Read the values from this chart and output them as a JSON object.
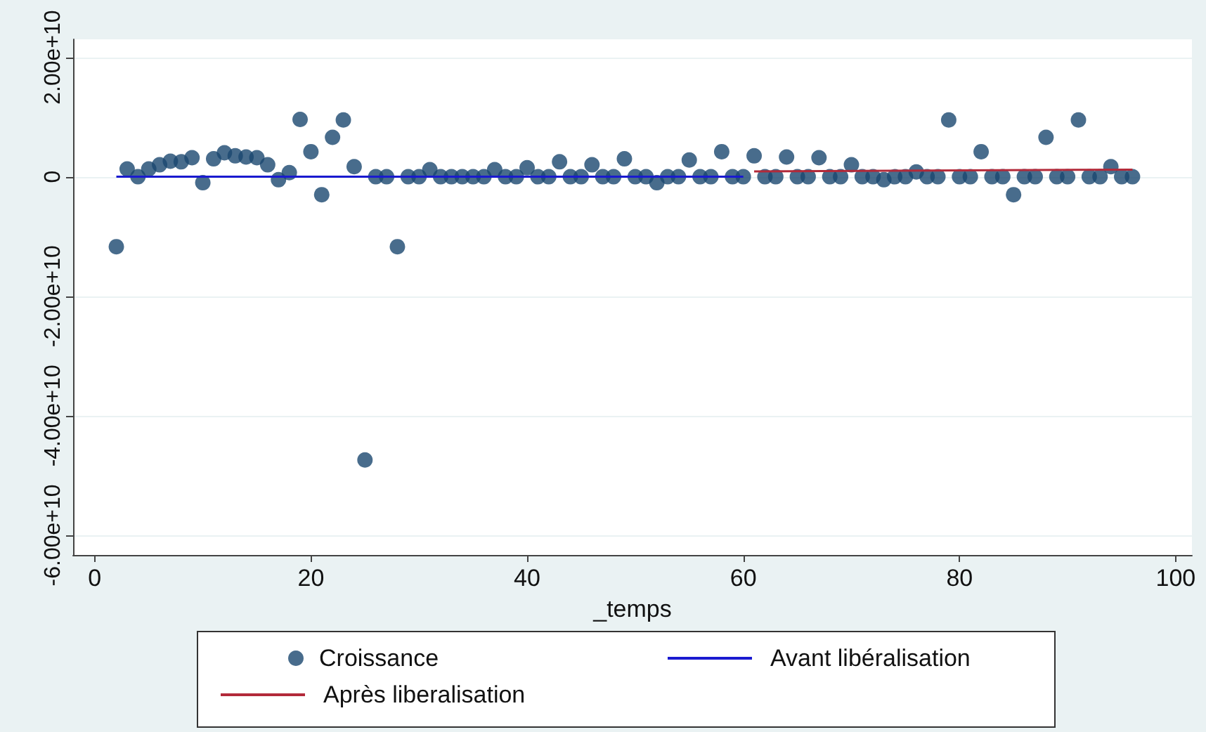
{
  "chart_data": {
    "type": "scatter",
    "xlabel": "_temps",
    "x": [
      2,
      3,
      4,
      5,
      6,
      7,
      8,
      9,
      10,
      11,
      12,
      13,
      14,
      15,
      16,
      17,
      18,
      19,
      20,
      21,
      22,
      23,
      24,
      25,
      26,
      27,
      28,
      29,
      30,
      31,
      32,
      33,
      34,
      35,
      36,
      37,
      38,
      39,
      40,
      41,
      42,
      43,
      44,
      45,
      46,
      47,
      48,
      49,
      50,
      51,
      52,
      53,
      54,
      55,
      56,
      57,
      58,
      59,
      60,
      61,
      62,
      63,
      64,
      65,
      66,
      67,
      68,
      69,
      70,
      71,
      72,
      73,
      74,
      75,
      76,
      77,
      78,
      79,
      80,
      81,
      82,
      83,
      84,
      85,
      86,
      87,
      88,
      89,
      90,
      91,
      92,
      93,
      94,
      95,
      96
    ],
    "series": [
      {
        "name": "Croissance",
        "type": "scatter",
        "marker": "circle",
        "color": "#1a476f",
        "values": [
          -11700000000.0,
          1300000000.0,
          0,
          1300000000.0,
          2000000000.0,
          2600000000.0,
          2500000000.0,
          3200000000.0,
          -1000000000.0,
          3000000000.0,
          4000000000.0,
          3500000000.0,
          3300000000.0,
          3200000000.0,
          2000000000.0,
          -500000000.0,
          700000000.0,
          9600000000.0,
          4200000000.0,
          -3000000000.0,
          6600000000.0,
          9500000000.0,
          1700000000.0,
          -47400000000.0,
          0,
          0,
          -11700000000.0,
          0,
          0,
          1200000000.0,
          0,
          0,
          0,
          0,
          0,
          1200000000.0,
          0,
          0,
          1500000000.0,
          0,
          0,
          2500000000.0,
          0,
          0,
          2000000000.0,
          0,
          0,
          3000000000.0,
          0,
          0,
          -1000000000.0,
          0,
          0,
          2800000000.0,
          0,
          0,
          4200000000.0,
          0,
          0,
          3500000000.0,
          0,
          0,
          3300000000.0,
          0,
          0,
          3200000000.0,
          0,
          0,
          2000000000.0,
          0,
          0,
          -500000000.0,
          0,
          0,
          800000000.0,
          0,
          0,
          9500000000.0,
          0,
          0,
          4200000000.0,
          0,
          0,
          -3000000000.0,
          0,
          0,
          6600000000.0,
          0,
          0,
          9500000000.0,
          0,
          0,
          1700000000.0,
          0,
          0
        ]
      },
      {
        "name": "Avant libéralisation",
        "type": "line",
        "color": "#1a1ad0",
        "x": [
          2,
          60
        ],
        "values": [
          0,
          0
        ]
      },
      {
        "name": "Après liberalisation",
        "type": "line",
        "color": "#b22a3a",
        "x": [
          61,
          96
        ],
        "values": [
          900000000.0,
          1200000000.0
        ]
      }
    ],
    "xlim": [
      -2,
      101.5
    ],
    "xticks": [
      0,
      20,
      40,
      60,
      80,
      100
    ],
    "ylim": [
      -63300000000.0,
      23000000000.0
    ],
    "yticks": [
      {
        "value": -60000000000.0,
        "label": "-6.00e+10"
      },
      {
        "value": -40000000000.0,
        "label": "-4.00e+10"
      },
      {
        "value": -20000000000.0,
        "label": "-2.00e+10"
      },
      {
        "value": 0,
        "label": "0"
      },
      {
        "value": 20000000000.0,
        "label": "2.00e+10"
      }
    ],
    "grid": "y",
    "legend": "bottom"
  }
}
